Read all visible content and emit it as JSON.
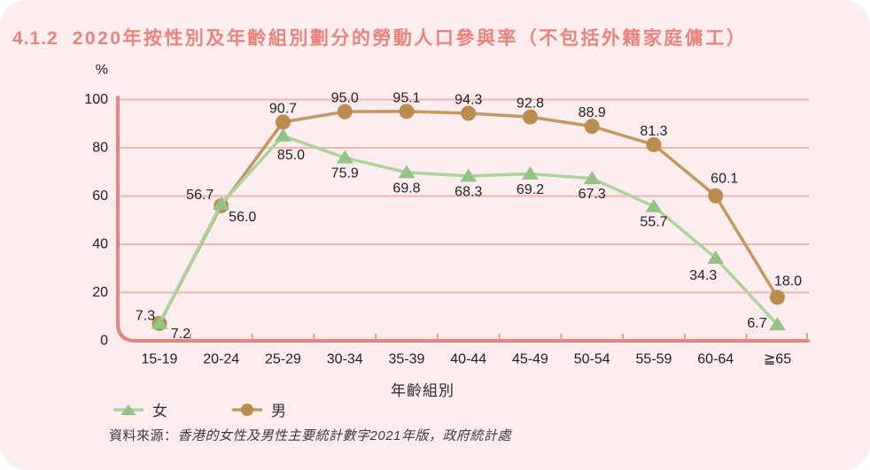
{
  "header": {
    "number": "4.1.2",
    "title": "2020年按性別及年齡組別劃分的勞動人口參與率（不包括外籍家庭傭工）"
  },
  "chart_data": {
    "type": "line",
    "title": "2020年按性別及年齡組別劃分的勞動人口參與率（不包括外籍家庭傭工）",
    "categories": [
      "15-19",
      "20-24",
      "25-29",
      "30-34",
      "35-39",
      "40-44",
      "45-49",
      "50-54",
      "55-59",
      "60-64",
      "≧65"
    ],
    "series": [
      {
        "name": "女",
        "marker": "triangle",
        "line_color": "#aed29e",
        "marker_color": "#93c485",
        "values": [
          7.3,
          56.7,
          85.0,
          75.9,
          69.8,
          68.3,
          69.2,
          67.3,
          55.7,
          34.3,
          6.7
        ]
      },
      {
        "name": "男",
        "marker": "circle",
        "line_color": "#c2985e",
        "marker_color": "#b98c4f",
        "values": [
          7.2,
          56.0,
          90.7,
          95.0,
          95.1,
          94.3,
          92.8,
          88.9,
          81.3,
          60.1,
          18.0
        ]
      }
    ],
    "xlabel": "年齡組別",
    "ylabel": "%",
    "ylim": [
      0,
      100
    ],
    "yticks": [
      0,
      20,
      40,
      60,
      80,
      100
    ],
    "grid": true,
    "legend_position": "bottom-left"
  },
  "source": {
    "prefix": "資料來源：",
    "text": "香港的女性及男性主要統計數字2021年版，政府統計處"
  },
  "colors": {
    "card_background": "#fdedef",
    "title": "#e9847d",
    "axis": "#e8837c",
    "gridline": "#f4b3ac",
    "tick": "#ec9890",
    "label_text": "#1c1c1c"
  }
}
